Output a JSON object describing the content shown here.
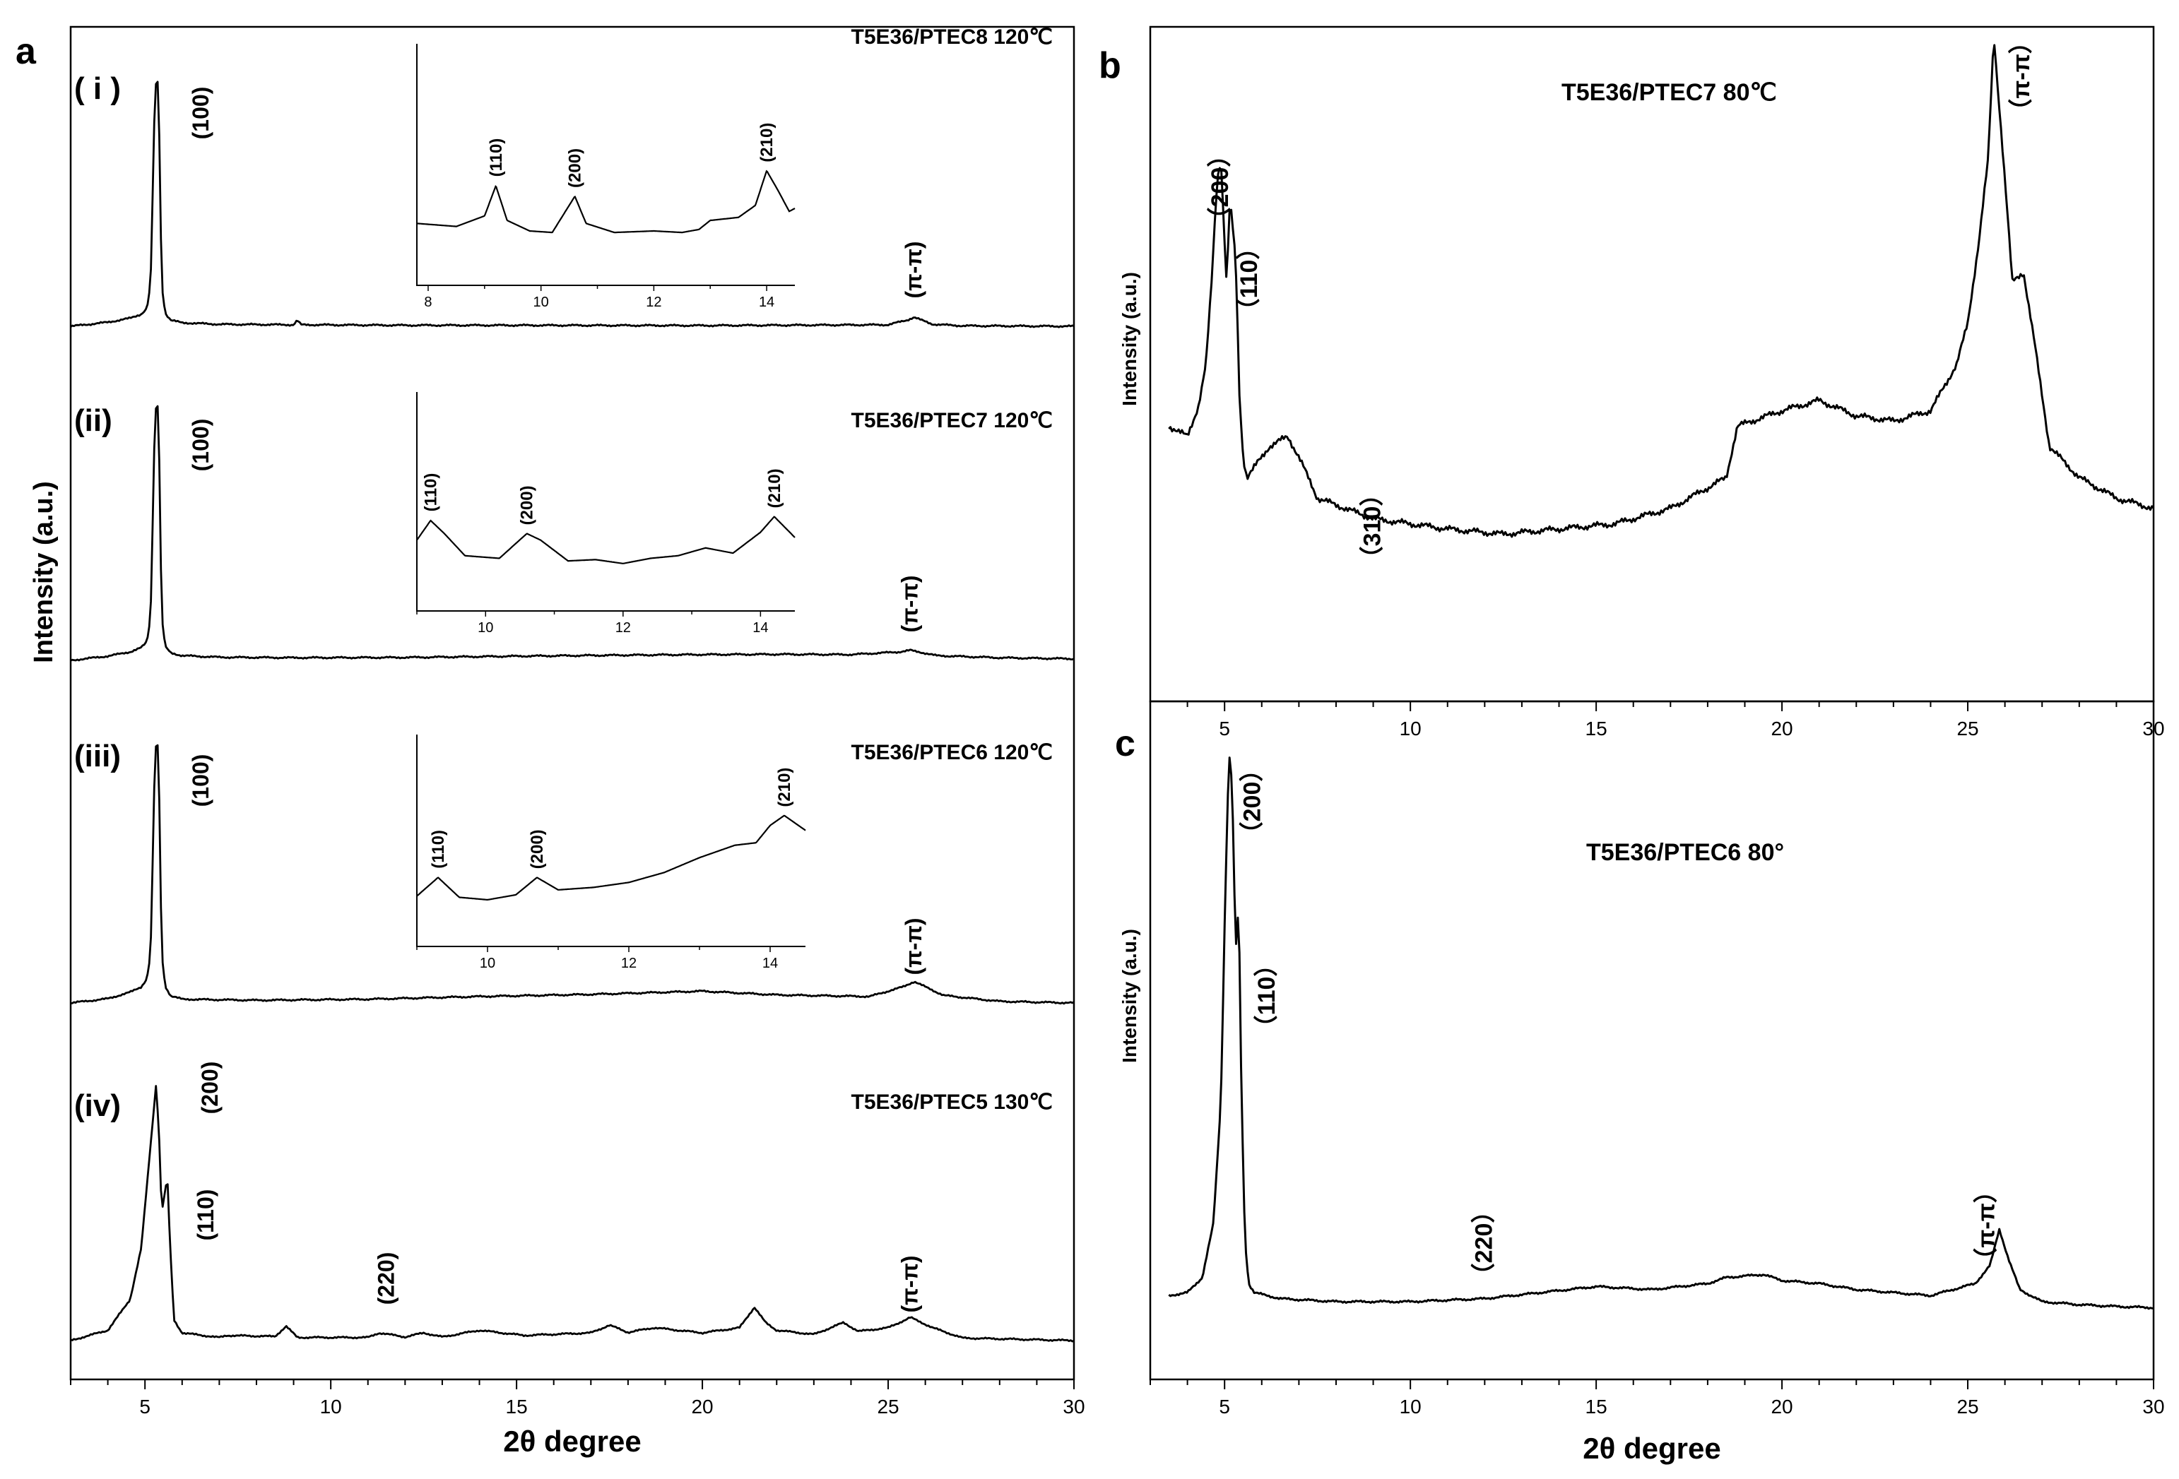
{
  "chart_data": [
    {
      "panel": "a",
      "type": "line",
      "xlabel": "2θ degree",
      "ylabel": "Intensity (a.u.)",
      "xlim": [
        3,
        30
      ],
      "xticks": [
        5,
        10,
        15,
        20,
        25,
        30
      ],
      "series": [
        {
          "id": "i",
          "roman": "( i )",
          "name": "T5E36/PTEC8 120℃",
          "x": [
            3,
            4,
            4.6,
            4.9,
            5.05,
            5.15,
            5.25,
            5.32,
            5.38,
            5.45,
            5.55,
            5.7,
            6,
            7,
            9,
            9.1,
            9.2,
            12,
            15,
            20,
            25,
            25.5,
            25.7,
            25.9,
            26.2,
            27,
            30
          ],
          "y": [
            0,
            0.8,
            1.6,
            2.4,
            3.5,
            8,
            40,
            52,
            40,
            8,
            2.5,
            1.2,
            0.7,
            0.4,
            0.3,
            1.2,
            0.3,
            0.2,
            0.2,
            0.15,
            0.3,
            1.2,
            1.8,
            1.2,
            0.4,
            0.1,
            0
          ],
          "peaks": [
            {
              "label": "(100)",
              "x": 5.3
            },
            {
              "label": "(π-π)",
              "x": 25.7
            }
          ],
          "inset": {
            "xlim": [
              7.8,
              14.5
            ],
            "xticks": [
              8,
              10,
              12,
              14
            ],
            "x": [
              7.8,
              8.5,
              9.0,
              9.2,
              9.4,
              9.8,
              10.2,
              10.5,
              10.6,
              10.8,
              11.3,
              12,
              12.5,
              12.8,
              13,
              13.5,
              13.8,
              14.0,
              14.2,
              14.4,
              14.5
            ],
            "y": [
              0.2,
              0.18,
              0.25,
              0.45,
              0.22,
              0.15,
              0.14,
              0.32,
              0.38,
              0.2,
              0.14,
              0.15,
              0.14,
              0.16,
              0.22,
              0.24,
              0.32,
              0.55,
              0.42,
              0.28,
              0.3
            ],
            "peaks": [
              {
                "label": "(110)",
                "x": 9.2
              },
              {
                "label": "(200)",
                "x": 10.6
              },
              {
                "label": "(210)",
                "x": 14.0
              }
            ]
          }
        },
        {
          "id": "ii",
          "roman": "(ii)",
          "name": "T5E36/PTEC7 120℃",
          "x": [
            3,
            4,
            4.6,
            4.9,
            5.05,
            5.15,
            5.25,
            5.32,
            5.38,
            5.45,
            5.55,
            5.7,
            6,
            7,
            9,
            12,
            15,
            18,
            20,
            22,
            24,
            25.3,
            25.6,
            25.9,
            26.3,
            28,
            30
          ],
          "y": [
            0,
            0.8,
            1.6,
            2.4,
            3.5,
            8,
            40,
            52,
            40,
            8,
            2.5,
            1.4,
            0.9,
            0.6,
            0.5,
            0.55,
            0.8,
            1.0,
            1.1,
            1.15,
            1.1,
            1.6,
            1.9,
            1.5,
            0.9,
            0.5,
            0.3
          ],
          "peaks": [
            {
              "label": "(100)",
              "x": 5.3
            },
            {
              "label": "(π-π)",
              "x": 25.6
            }
          ],
          "inset": {
            "xlim": [
              9,
              14.5
            ],
            "xticks": [
              10,
              12,
              14
            ],
            "x": [
              9,
              9.2,
              9.4,
              9.7,
              10.2,
              10.6,
              10.8,
              11.2,
              11.6,
              12,
              12.4,
              12.8,
              13.2,
              13.6,
              14,
              14.2,
              14.5
            ],
            "y": [
              0.3,
              0.45,
              0.35,
              0.18,
              0.16,
              0.35,
              0.3,
              0.14,
              0.15,
              0.12,
              0.16,
              0.18,
              0.24,
              0.2,
              0.36,
              0.48,
              0.32
            ],
            "peaks": [
              {
                "label": "(110)",
                "x": 9.2
              },
              {
                "label": "(200)",
                "x": 10.6
              },
              {
                "label": "(210)",
                "x": 14.2
              }
            ]
          }
        },
        {
          "id": "iii",
          "roman": "(iii)",
          "name": "T5E36/PTEC6 120℃",
          "x": [
            3,
            4,
            4.6,
            4.9,
            5.05,
            5.15,
            5.25,
            5.32,
            5.38,
            5.45,
            5.55,
            5.7,
            6,
            8,
            11,
            14,
            17,
            19,
            20,
            22,
            24.5,
            25.4,
            25.7,
            26.0,
            26.5,
            28,
            30
          ],
          "y": [
            0,
            0.8,
            2.0,
            3.0,
            4.5,
            9,
            40,
            52,
            40,
            9,
            3.0,
            1.3,
            0.7,
            0.5,
            0.7,
            1.2,
            1.6,
            2.0,
            2.2,
            1.5,
            1.2,
            3.0,
            4.0,
            3.0,
            1.4,
            0.3,
            0
          ],
          "peaks": [
            {
              "label": "(100)",
              "x": 5.3
            },
            {
              "label": "(π-π)",
              "x": 25.7
            }
          ],
          "inset": {
            "xlim": [
              9,
              14.5
            ],
            "xticks": [
              10,
              12,
              14
            ],
            "x": [
              9,
              9.3,
              9.6,
              10,
              10.4,
              10.7,
              11,
              11.5,
              12,
              12.5,
              13,
              13.5,
              13.8,
              14.0,
              14.2,
              14.5
            ],
            "y": [
              0.15,
              0.3,
              0.14,
              0.12,
              0.16,
              0.3,
              0.2,
              0.22,
              0.26,
              0.34,
              0.46,
              0.56,
              0.58,
              0.72,
              0.8,
              0.68
            ],
            "peaks": [
              {
                "label": "(110)",
                "x": 9.3
              },
              {
                "label": "(200)",
                "x": 10.7
              },
              {
                "label": "(210)",
                "x": 14.2
              }
            ]
          }
        },
        {
          "id": "iv",
          "roman": "(iv)",
          "name": "T5E36/PTEC5 130℃",
          "x": [
            3,
            4,
            4.6,
            4.9,
            5.05,
            5.2,
            5.3,
            5.38,
            5.45,
            5.52,
            5.6,
            5.68,
            5.78,
            6.0,
            7.0,
            7.2,
            8.5,
            8.8,
            9.1,
            11,
            11.3,
            12,
            12.5,
            13,
            14,
            15.2,
            17,
            17.5,
            18,
            18.7,
            20,
            21,
            21.4,
            21.7,
            22,
            23,
            23.8,
            24.2,
            25,
            25.6,
            26.2,
            27,
            30
          ],
          "y": [
            0,
            2,
            8,
            18,
            30,
            42,
            50,
            40,
            25,
            28,
            32,
            18,
            4,
            1.5,
            0.6,
            1.0,
            0.8,
            2.8,
            0.6,
            0.6,
            1.5,
            0.7,
            1.5,
            0.7,
            2.0,
            1.0,
            1.5,
            3.0,
            1.6,
            2.5,
            1.5,
            2.5,
            6.5,
            3.5,
            2.0,
            1.2,
            3.5,
            1.8,
            2.5,
            4.5,
            2.5,
            0.5,
            0
          ],
          "peaks": [
            {
              "label": "(200)",
              "x": 5.3
            },
            {
              "label": "(110)",
              "x": 5.6
            },
            {
              "label": "(220)",
              "x": 12.5
            },
            {
              "label": "(π-π)",
              "x": 25.6
            }
          ]
        }
      ]
    },
    {
      "panel": "b",
      "type": "line",
      "title": "T5E36/PTEC7 80℃",
      "xlabel": "",
      "ylabel": "Intensity (a.u.)",
      "xlim": [
        3,
        30
      ],
      "ylim": [
        0,
        60
      ],
      "xticks": [
        5,
        10,
        15,
        20,
        25,
        30
      ],
      "x": [
        3.5,
        4.0,
        4.3,
        4.5,
        4.65,
        4.8,
        4.9,
        5.05,
        5.15,
        5.3,
        5.4,
        5.5,
        5.6,
        5.8,
        6.2,
        6.7,
        7.0,
        7.5,
        9,
        11,
        12.5,
        14,
        15.5,
        17,
        18.5,
        18.8,
        19.2,
        20,
        21,
        22,
        23,
        24,
        24.7,
        25.0,
        25.3,
        25.55,
        25.7,
        25.85,
        26.0,
        26.2,
        26.5,
        26.8,
        27.2,
        28,
        29,
        30
      ],
      "y": [
        19,
        18,
        21,
        25,
        33,
        43,
        45,
        33,
        41,
        35,
        22,
        16,
        14,
        15,
        17,
        18,
        16,
        12,
        10,
        9,
        8.5,
        9,
        9.5,
        11,
        14,
        19,
        19.5,
        20.5,
        21.5,
        20,
        19.5,
        20.5,
        25,
        29,
        37,
        45,
        57,
        50,
        43,
        33,
        34,
        27,
        17,
        14,
        12,
        11
      ],
      "peaks": [
        {
          "label": "（200）",
          "x": 4.9
        },
        {
          "label": "（110）",
          "x": 5.3
        },
        {
          "label": "（310）",
          "x": 9.0
        },
        {
          "label": "（π-π）",
          "x": 25.7
        }
      ]
    },
    {
      "panel": "c",
      "type": "line",
      "title": "T5E36/PTEC6 80°",
      "xlabel": "2θ degree",
      "ylabel": "Intensity (a.u.)",
      "xlim": [
        3,
        30
      ],
      "ylim": [
        0,
        100
      ],
      "xticks": [
        5,
        10,
        15,
        20,
        25,
        30
      ],
      "x": [
        3.5,
        4.0,
        4.4,
        4.7,
        4.9,
        5.02,
        5.12,
        5.2,
        5.3,
        5.38,
        5.45,
        5.55,
        5.65,
        5.8,
        6.5,
        8,
        10,
        12,
        13.5,
        15,
        16.5,
        18,
        18.5,
        19.5,
        20,
        21,
        22,
        24,
        25.2,
        25.6,
        25.85,
        26.1,
        26.4,
        27,
        28,
        29,
        30
      ],
      "y": [
        3,
        3.5,
        6,
        15,
        35,
        70,
        93,
        88,
        60,
        68,
        38,
        12,
        5,
        3.5,
        2.5,
        2,
        2,
        2.5,
        3.5,
        4.5,
        4,
        5,
        6,
        6.5,
        5.5,
        5,
        4,
        3,
        5,
        8,
        14,
        9,
        4,
        2,
        1.5,
        1.2,
        1
      ],
      "peaks": [
        {
          "label": "（200）",
          "x": 5.2
        },
        {
          "label": "（110）",
          "x": 5.4
        },
        {
          "label": "（220）",
          "x": 12.0
        },
        {
          "label": "（π-π）",
          "x": 25.9
        }
      ]
    }
  ],
  "panels": {
    "a": {
      "letter": "a"
    },
    "b": {
      "letter": "b"
    },
    "c": {
      "letter": "c"
    }
  }
}
